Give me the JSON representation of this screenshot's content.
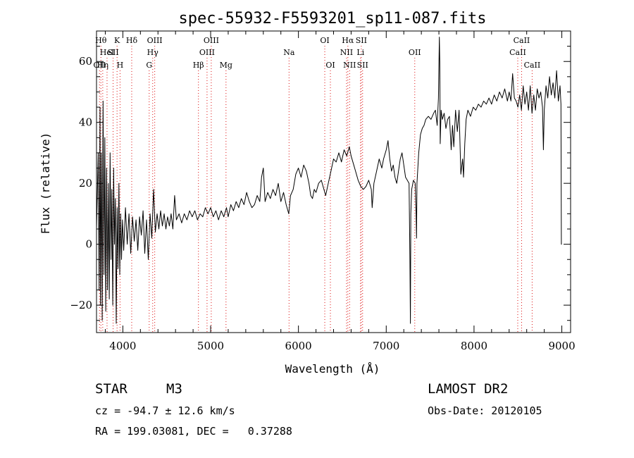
{
  "chart_data": {
    "type": "line",
    "title": "spec-55932-F5593201_sp11-087.fits",
    "xlabel": "Wavelength (Å)",
    "ylabel": "Flux (relative)",
    "xlim": [
      3700,
      9100
    ],
    "ylim": [
      -29,
      70
    ],
    "xticks": [
      4000,
      5000,
      6000,
      7000,
      8000,
      9000
    ],
    "yticks": [
      -20,
      0,
      20,
      40,
      60
    ],
    "line_color": "#000000",
    "grid": false,
    "series": [
      {
        "values": [
          [
            3700,
            5
          ],
          [
            3720,
            30
          ],
          [
            3730,
            -15
          ],
          [
            3740,
            45
          ],
          [
            3745,
            -20
          ],
          [
            3755,
            30
          ],
          [
            3765,
            -25
          ],
          [
            3775,
            47
          ],
          [
            3785,
            -10
          ],
          [
            3795,
            35
          ],
          [
            3805,
            -22
          ],
          [
            3815,
            25
          ],
          [
            3825,
            -15
          ],
          [
            3835,
            20
          ],
          [
            3845,
            -18
          ],
          [
            3855,
            30
          ],
          [
            3865,
            -5
          ],
          [
            3875,
            18
          ],
          [
            3885,
            -20
          ],
          [
            3895,
            25
          ],
          [
            3905,
            0
          ],
          [
            3915,
            15
          ],
          [
            3925,
            -26
          ],
          [
            3935,
            12
          ],
          [
            3945,
            -8
          ],
          [
            3955,
            20
          ],
          [
            3965,
            -10
          ],
          [
            3975,
            10
          ],
          [
            3985,
            -5
          ],
          [
            3995,
            8
          ],
          [
            4010,
            -2
          ],
          [
            4030,
            12
          ],
          [
            4050,
            0
          ],
          [
            4070,
            10
          ],
          [
            4090,
            -3
          ],
          [
            4110,
            9
          ],
          [
            4130,
            1
          ],
          [
            4150,
            8
          ],
          [
            4170,
            -2
          ],
          [
            4190,
            9
          ],
          [
            4210,
            3
          ],
          [
            4230,
            11
          ],
          [
            4250,
            -3
          ],
          [
            4270,
            8
          ],
          [
            4290,
            -5
          ],
          [
            4310,
            10
          ],
          [
            4330,
            2
          ],
          [
            4350,
            18
          ],
          [
            4370,
            4
          ],
          [
            4390,
            10
          ],
          [
            4410,
            5
          ],
          [
            4430,
            11
          ],
          [
            4450,
            6
          ],
          [
            4470,
            10
          ],
          [
            4490,
            5
          ],
          [
            4510,
            9
          ],
          [
            4530,
            6
          ],
          [
            4550,
            10
          ],
          [
            4570,
            5
          ],
          [
            4590,
            16
          ],
          [
            4610,
            8
          ],
          [
            4640,
            10
          ],
          [
            4670,
            7
          ],
          [
            4700,
            10
          ],
          [
            4730,
            8
          ],
          [
            4760,
            11
          ],
          [
            4790,
            9
          ],
          [
            4820,
            11
          ],
          [
            4850,
            8
          ],
          [
            4880,
            10
          ],
          [
            4910,
            9
          ],
          [
            4940,
            12
          ],
          [
            4970,
            10
          ],
          [
            5000,
            12
          ],
          [
            5030,
            9
          ],
          [
            5060,
            11
          ],
          [
            5090,
            8
          ],
          [
            5120,
            11
          ],
          [
            5150,
            9
          ],
          [
            5180,
            12
          ],
          [
            5200,
            9
          ],
          [
            5230,
            13
          ],
          [
            5260,
            11
          ],
          [
            5290,
            14
          ],
          [
            5320,
            12
          ],
          [
            5350,
            15
          ],
          [
            5380,
            13
          ],
          [
            5410,
            17
          ],
          [
            5440,
            14
          ],
          [
            5470,
            12
          ],
          [
            5500,
            13
          ],
          [
            5530,
            16
          ],
          [
            5560,
            14
          ],
          [
            5580,
            22
          ],
          [
            5600,
            25
          ],
          [
            5620,
            14
          ],
          [
            5650,
            17
          ],
          [
            5680,
            15
          ],
          [
            5710,
            18
          ],
          [
            5740,
            16
          ],
          [
            5770,
            20
          ],
          [
            5800,
            14
          ],
          [
            5830,
            17
          ],
          [
            5860,
            13
          ],
          [
            5890,
            10
          ],
          [
            5910,
            16
          ],
          [
            5940,
            18
          ],
          [
            5970,
            23
          ],
          [
            6000,
            25
          ],
          [
            6030,
            22
          ],
          [
            6060,
            26
          ],
          [
            6090,
            24
          ],
          [
            6120,
            20
          ],
          [
            6140,
            16
          ],
          [
            6160,
            15
          ],
          [
            6180,
            18
          ],
          [
            6200,
            17
          ],
          [
            6230,
            20
          ],
          [
            6260,
            21
          ],
          [
            6290,
            18
          ],
          [
            6310,
            16
          ],
          [
            6340,
            20
          ],
          [
            6370,
            24
          ],
          [
            6400,
            28
          ],
          [
            6430,
            27
          ],
          [
            6460,
            30
          ],
          [
            6490,
            27
          ],
          [
            6520,
            31
          ],
          [
            6550,
            29
          ],
          [
            6580,
            32
          ],
          [
            6600,
            29
          ],
          [
            6630,
            26
          ],
          [
            6650,
            24
          ],
          [
            6680,
            21
          ],
          [
            6710,
            19
          ],
          [
            6740,
            18
          ],
          [
            6770,
            19
          ],
          [
            6800,
            21
          ],
          [
            6830,
            18
          ],
          [
            6840,
            12
          ],
          [
            6860,
            20
          ],
          [
            6890,
            24
          ],
          [
            6920,
            28
          ],
          [
            6950,
            25
          ],
          [
            6970,
            28
          ],
          [
            7000,
            31
          ],
          [
            7020,
            34
          ],
          [
            7040,
            28
          ],
          [
            7060,
            24
          ],
          [
            7080,
            26
          ],
          [
            7100,
            22
          ],
          [
            7120,
            20
          ],
          [
            7140,
            24
          ],
          [
            7160,
            28
          ],
          [
            7180,
            30
          ],
          [
            7200,
            26
          ],
          [
            7220,
            22
          ],
          [
            7240,
            21
          ],
          [
            7260,
            20
          ],
          [
            7270,
            -5
          ],
          [
            7275,
            -26
          ],
          [
            7280,
            10
          ],
          [
            7290,
            18
          ],
          [
            7310,
            21
          ],
          [
            7330,
            20
          ],
          [
            7340,
            10
          ],
          [
            7345,
            2
          ],
          [
            7350,
            20
          ],
          [
            7370,
            30
          ],
          [
            7390,
            36
          ],
          [
            7410,
            38
          ],
          [
            7430,
            39
          ],
          [
            7450,
            41
          ],
          [
            7480,
            42
          ],
          [
            7510,
            41
          ],
          [
            7540,
            43
          ],
          [
            7560,
            44
          ],
          [
            7580,
            39
          ],
          [
            7595,
            48
          ],
          [
            7605,
            68
          ],
          [
            7610,
            60
          ],
          [
            7615,
            33
          ],
          [
            7625,
            44
          ],
          [
            7640,
            41
          ],
          [
            7660,
            43
          ],
          [
            7680,
            38
          ],
          [
            7700,
            41
          ],
          [
            7720,
            42
          ],
          [
            7740,
            31
          ],
          [
            7755,
            39
          ],
          [
            7770,
            32
          ],
          [
            7790,
            44
          ],
          [
            7810,
            37
          ],
          [
            7830,
            44
          ],
          [
            7850,
            23
          ],
          [
            7870,
            28
          ],
          [
            7880,
            22
          ],
          [
            7895,
            33
          ],
          [
            7910,
            41
          ],
          [
            7930,
            44
          ],
          [
            7960,
            42
          ],
          [
            7990,
            45
          ],
          [
            8020,
            44
          ],
          [
            8050,
            46
          ],
          [
            8080,
            45
          ],
          [
            8110,
            47
          ],
          [
            8140,
            46
          ],
          [
            8170,
            48
          ],
          [
            8200,
            46
          ],
          [
            8230,
            49
          ],
          [
            8260,
            47
          ],
          [
            8290,
            50
          ],
          [
            8320,
            48
          ],
          [
            8350,
            51
          ],
          [
            8380,
            47
          ],
          [
            8400,
            50
          ],
          [
            8420,
            47
          ],
          [
            8440,
            56
          ],
          [
            8460,
            48
          ],
          [
            8480,
            47
          ],
          [
            8500,
            45
          ],
          [
            8520,
            49
          ],
          [
            8540,
            44
          ],
          [
            8560,
            52
          ],
          [
            8580,
            46
          ],
          [
            8600,
            50
          ],
          [
            8620,
            44
          ],
          [
            8640,
            52
          ],
          [
            8660,
            43
          ],
          [
            8680,
            49
          ],
          [
            8700,
            44
          ],
          [
            8720,
            51
          ],
          [
            8740,
            48
          ],
          [
            8760,
            50
          ],
          [
            8780,
            45
          ],
          [
            8790,
            31
          ],
          [
            8800,
            44
          ],
          [
            8820,
            52
          ],
          [
            8840,
            48
          ],
          [
            8860,
            55
          ],
          [
            8880,
            49
          ],
          [
            8900,
            53
          ],
          [
            8920,
            48
          ],
          [
            8940,
            57
          ],
          [
            8960,
            47
          ],
          [
            8980,
            52
          ],
          [
            8990,
            46
          ],
          [
            8995,
            0
          ],
          [
            9000,
            0
          ]
        ]
      }
    ],
    "lines": [
      {
        "wavelength": 3750,
        "label": "Hθ",
        "row": 1
      },
      {
        "wavelength": 3734,
        "label": "OII",
        "row": 3
      },
      {
        "wavelength": 3771,
        "label": "Hη",
        "row": 3
      },
      {
        "wavelength": 3820,
        "label": "HeI",
        "row": 2
      },
      {
        "wavelength": 3889,
        "label": "SII",
        "row": 2
      },
      {
        "wavelength": 3934,
        "label": "K",
        "row": 1
      },
      {
        "wavelength": 3968,
        "label": "H",
        "row": 3
      },
      {
        "wavelength": 4101,
        "label": "Hδ",
        "row": 1
      },
      {
        "wavelength": 4300,
        "label": "G",
        "row": 3
      },
      {
        "wavelength": 4340,
        "label": "Hγ",
        "row": 2
      },
      {
        "wavelength": 4363,
        "label": "OIII",
        "row": 1
      },
      {
        "wavelength": 4861,
        "label": "Hβ",
        "row": 3
      },
      {
        "wavelength": 4959,
        "label": "OIII",
        "row": 2
      },
      {
        "wavelength": 5007,
        "label": "OIII",
        "row": 1
      },
      {
        "wavelength": 5175,
        "label": "Mg",
        "row": 3
      },
      {
        "wavelength": 5893,
        "label": "Na",
        "row": 2
      },
      {
        "wavelength": 6300,
        "label": "OI",
        "row": 1
      },
      {
        "wavelength": 6364,
        "label": "OI",
        "row": 3
      },
      {
        "wavelength": 6548,
        "label": "NII",
        "row": 2
      },
      {
        "wavelength": 6563,
        "label": "Hα",
        "row": 1
      },
      {
        "wavelength": 6583,
        "label": "NII",
        "row": 3
      },
      {
        "wavelength": 6707,
        "label": "Li",
        "row": 2
      },
      {
        "wavelength": 6716,
        "label": "SII",
        "row": 1
      },
      {
        "wavelength": 6731,
        "label": "SII",
        "row": 3
      },
      {
        "wavelength": 7325,
        "label": "OII",
        "row": 2
      },
      {
        "wavelength": 8498,
        "label": "CaII",
        "row": 2
      },
      {
        "wavelength": 8542,
        "label": "CaII",
        "row": 1
      },
      {
        "wavelength": 8662,
        "label": "CaII",
        "row": 3
      }
    ]
  },
  "info": {
    "object_type": "STAR",
    "subclass": "M3",
    "survey": "LAMOST DR2",
    "redshift": "cz = -94.7 ± 12.6 km/s",
    "obs_date": "Obs-Date: 20120105",
    "coords": "RA = 199.03081, DEC =   0.37288"
  }
}
